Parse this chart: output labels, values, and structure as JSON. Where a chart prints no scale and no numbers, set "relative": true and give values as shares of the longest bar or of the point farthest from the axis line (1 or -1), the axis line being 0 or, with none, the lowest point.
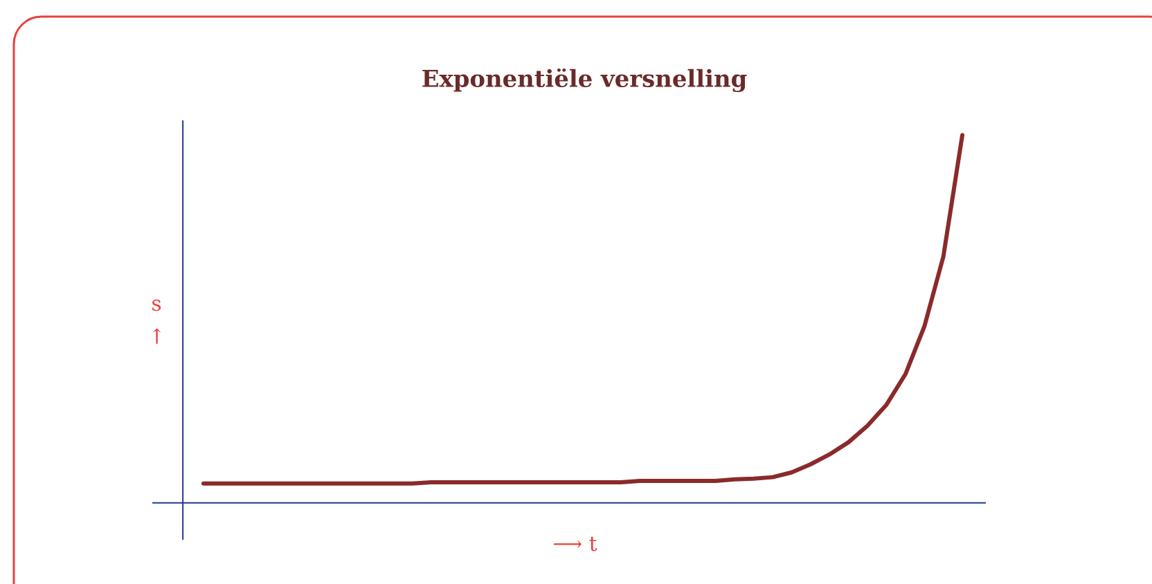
{
  "chart_data": {
    "type": "line",
    "title": "Exponentiële versnelling",
    "xlabel": "⟶ t",
    "ylabel": "s ↑",
    "relative": true,
    "color": "#8b2a2a",
    "categories": [
      null,
      null,
      null,
      null,
      null,
      null,
      null,
      null,
      null,
      null,
      null,
      null,
      null,
      null,
      null,
      null,
      null,
      null,
      null,
      null,
      null,
      null,
      null,
      null,
      null,
      null,
      null,
      null,
      null,
      null,
      null,
      null,
      null,
      null,
      null,
      null,
      null,
      null,
      null,
      null,
      null
    ],
    "values": [
      0.053,
      0.053,
      0.053,
      0.053,
      0.053,
      0.053,
      0.053,
      0.053,
      0.053,
      0.053,
      0.053,
      0.053,
      0.056,
      0.056,
      0.056,
      0.056,
      0.056,
      0.056,
      0.056,
      0.056,
      0.056,
      0.056,
      0.056,
      0.06,
      0.06,
      0.06,
      0.06,
      0.06,
      0.064,
      0.066,
      0.07,
      0.083,
      0.105,
      0.132,
      0.165,
      0.21,
      0.267,
      0.35,
      0.48,
      0.67,
      1
    ]
  }
}
